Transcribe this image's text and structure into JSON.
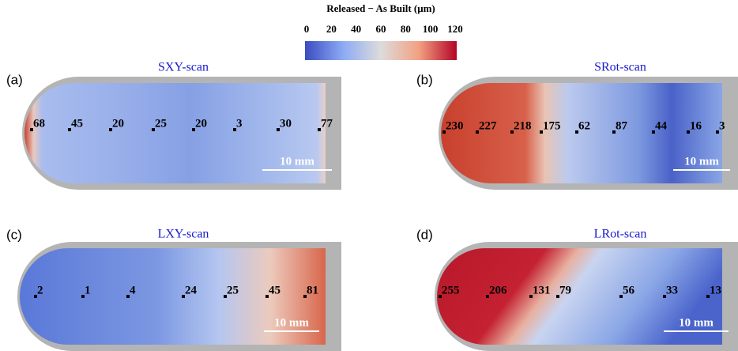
{
  "colorbar": {
    "label": "Released − As Built (μm)",
    "ticks": [
      0,
      20,
      40,
      60,
      80,
      100,
      120
    ]
  },
  "panels": [
    {
      "label": "(a)",
      "title": "SXY-scan",
      "points": [
        "68",
        "45",
        "20",
        "25",
        "20",
        "3",
        "30",
        "77"
      ],
      "scale": "10 mm"
    },
    {
      "label": "(b)",
      "title": "SRot-scan",
      "points": [
        "230",
        "227",
        "218",
        "175",
        "62",
        "87",
        "44",
        "16",
        "3"
      ],
      "scale": "10 mm"
    },
    {
      "label": "(c)",
      "title": "LXY-scan",
      "points": [
        "2",
        "1",
        "4",
        "24",
        "25",
        "45",
        "81"
      ],
      "scale": "10 mm"
    },
    {
      "label": "(d)",
      "title": "LRot-scan",
      "points": [
        "255",
        "206",
        "131",
        "79",
        "56",
        "33",
        "13"
      ],
      "scale": "10 mm"
    }
  ]
}
